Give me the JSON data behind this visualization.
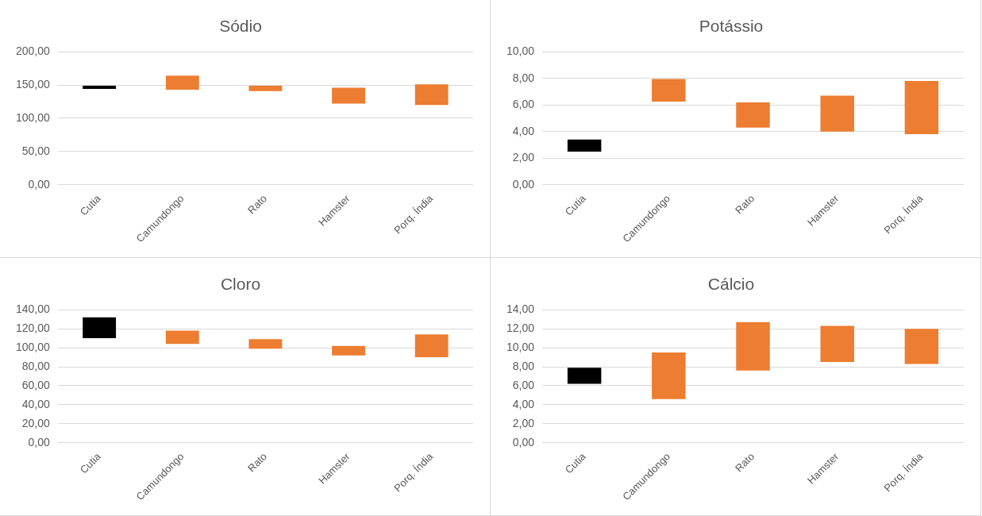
{
  "chart_data": [
    {
      "type": "bar",
      "title": "Sódio",
      "categories": [
        "Cutia",
        "Camundongo",
        "Rato",
        "Hamster",
        "Porq. Índia"
      ],
      "base": [
        144,
        143,
        141,
        122,
        120
      ],
      "values": [
        5,
        21,
        8,
        24,
        31
      ],
      "colors": [
        "#000000",
        "#ed7d31",
        "#ed7d31",
        "#ed7d31",
        "#ed7d31"
      ],
      "ylim": [
        0,
        200
      ],
      "yticks": [
        {
          "value": 0,
          "label": "0,00"
        },
        {
          "value": 50,
          "label": "50,00"
        },
        {
          "value": 100,
          "label": "100,00"
        },
        {
          "value": 150,
          "label": "150,00"
        },
        {
          "value": 200,
          "label": "200,00"
        }
      ],
      "grid": "y"
    },
    {
      "type": "bar",
      "title": "Potássio",
      "categories": [
        "Cutia",
        "Camundongo",
        "Rato",
        "Hamster",
        "Porq. Índia"
      ],
      "base": [
        2.5,
        6.25,
        4.3,
        4.0,
        3.8
      ],
      "values": [
        0.9,
        1.7,
        1.9,
        2.7,
        4.0
      ],
      "colors": [
        "#000000",
        "#ed7d31",
        "#ed7d31",
        "#ed7d31",
        "#ed7d31"
      ],
      "ylim": [
        0,
        10
      ],
      "yticks": [
        {
          "value": 0,
          "label": "0,00"
        },
        {
          "value": 2,
          "label": "2,00"
        },
        {
          "value": 4,
          "label": "4,00"
        },
        {
          "value": 6,
          "label": "6,00"
        },
        {
          "value": 8,
          "label": "8,00"
        },
        {
          "value": 10,
          "label": "10,00"
        }
      ],
      "grid": "y"
    },
    {
      "type": "bar",
      "title": "Cloro",
      "categories": [
        "Cutia",
        "Camundongo",
        "Rato",
        "Hamster",
        "Porq. Índia"
      ],
      "base": [
        110,
        104,
        99,
        92,
        90
      ],
      "values": [
        22,
        14,
        10,
        10,
        24
      ],
      "colors": [
        "#000000",
        "#ed7d31",
        "#ed7d31",
        "#ed7d31",
        "#ed7d31"
      ],
      "ylim": [
        0,
        140
      ],
      "yticks": [
        {
          "value": 0,
          "label": "0,00"
        },
        {
          "value": 20,
          "label": "20,00"
        },
        {
          "value": 40,
          "label": "40,00"
        },
        {
          "value": 60,
          "label": "60,00"
        },
        {
          "value": 80,
          "label": "80,00"
        },
        {
          "value": 100,
          "label": "100,00"
        },
        {
          "value": 120,
          "label": "120,00"
        },
        {
          "value": 140,
          "label": "140,00"
        }
      ],
      "grid": "y"
    },
    {
      "type": "bar",
      "title": "Cálcio",
      "categories": [
        "Cutia",
        "Camundongo",
        "Rato",
        "Hamster",
        "Porq. Índia"
      ],
      "base": [
        6.2,
        4.6,
        7.6,
        8.5,
        8.3
      ],
      "values": [
        1.7,
        4.9,
        5.1,
        3.8,
        3.7
      ],
      "colors": [
        "#000000",
        "#ed7d31",
        "#ed7d31",
        "#ed7d31",
        "#ed7d31"
      ],
      "ylim": [
        0,
        14
      ],
      "yticks": [
        {
          "value": 0,
          "label": "0,00"
        },
        {
          "value": 2,
          "label": "2,00"
        },
        {
          "value": 4,
          "label": "4,00"
        },
        {
          "value": 6,
          "label": "6,00"
        },
        {
          "value": 8,
          "label": "8,00"
        },
        {
          "value": 10,
          "label": "10,00"
        },
        {
          "value": 12,
          "label": "12,00"
        },
        {
          "value": 14,
          "label": "14,00"
        }
      ],
      "grid": "y"
    }
  ]
}
